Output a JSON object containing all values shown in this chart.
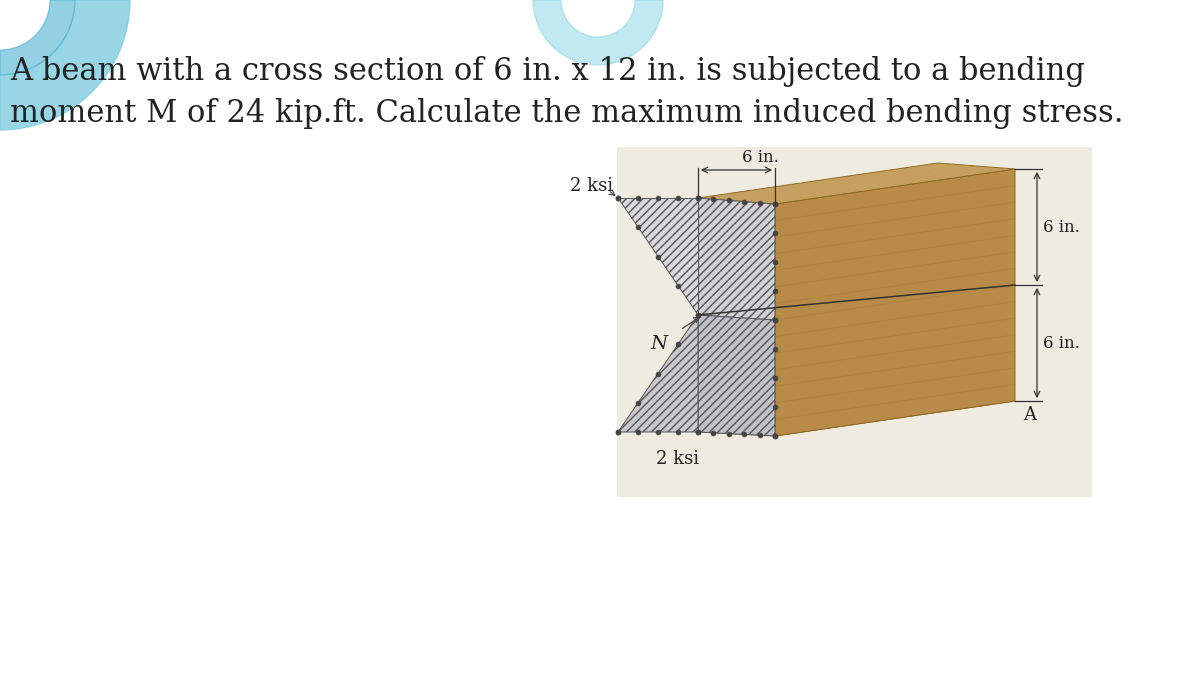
{
  "title_text": "A beam with a cross section of 6 in. x 12 in. is subjected to a bending\nmoment M of 24 kip.ft. Calculate the maximum induced bending stress.",
  "title_fontsize": 22,
  "title_color": "#222222",
  "background_color": "#ffffff",
  "diagram_bg_color": "#f0ebe0",
  "wood_top_color": "#c8a464",
  "wood_right_color": "#b88c48",
  "wood_grain_color": "#c09050",
  "stress_color": "#c8c8cc",
  "hatch_pattern": "////",
  "hatch_color": "#666666",
  "dim_color": "#333333",
  "label_color": "#222222",
  "label_fontsize": 13,
  "label_2ksi_top": "2 ksi",
  "label_2ksi_bottom": "2 ksi",
  "label_N": "N",
  "label_A": "A",
  "label_6in_top": "6 in.",
  "label_6in_right1": "6 in.",
  "label_6in_right2": "6 in.",
  "teal_color1": "#7ecce0",
  "teal_color2": "#5ab8d4",
  "teal_top_color": "#8dd8e8"
}
